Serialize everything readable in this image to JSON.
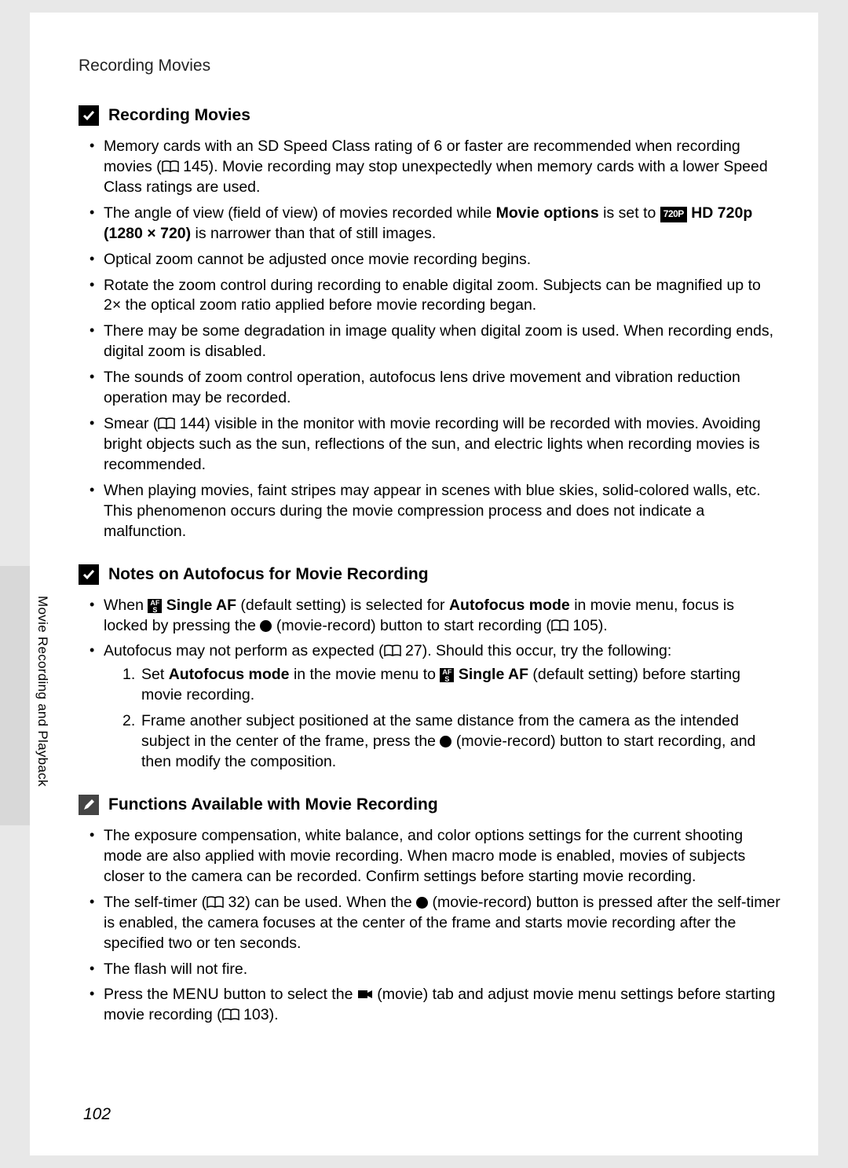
{
  "header": {
    "title": "Recording Movies"
  },
  "sideText": "Movie Recording and Playback",
  "pageNumber": "102",
  "sections": [
    {
      "icon": "check",
      "title": "Recording Movies",
      "bullets": [
        "Memory cards with an SD Speed Class rating of 6 or faster are recommended when recording movies ([BOOK] 145). Movie recording may stop unexpectedly when memory cards with a lower Speed Class ratings are used.",
        "The angle of view (field of view) of movies recorded while [B]Movie options[/B] is set to [720P] [B]HD 720p (1280 × 720)[/B] is narrower than that of still images.",
        "Optical zoom cannot be adjusted once movie recording begins.",
        "Rotate the zoom control during recording to enable digital zoom. Subjects can be magnified up to 2× the optical zoom ratio applied before movie recording began.",
        "There may be some degradation in image quality when digital zoom is used. When recording ends, digital zoom is disabled.",
        "The sounds of zoom control operation, autofocus lens drive movement and vibration reduction operation may be recorded.",
        "Smear ([BOOK] 144) visible in the monitor with movie recording will be recorded with movies. Avoiding bright objects such as the sun, reflections of the sun, and electric lights when recording movies is recommended.",
        "When playing movies, faint stripes may appear in scenes with blue skies, solid-colored walls, etc. This phenomenon occurs during the movie compression process and does not indicate a malfunction."
      ]
    },
    {
      "icon": "check",
      "title": "Notes on Autofocus for Movie Recording",
      "bullets": [
        "When [AFS] [B]Single AF[/B] (default setting) is selected for [B]Autofocus mode[/B] in movie menu, focus is locked by pressing the [DOT] (movie-record) button to start recording ([BOOK] 105).",
        "Autofocus may not perform as expected ([BOOK] 27). Should this occur, try the following:"
      ],
      "numbered": [
        "Set [B]Autofocus mode[/B] in the movie menu to [AFS] [B]Single AF[/B] (default setting) before starting movie recording.",
        "Frame another subject positioned at the same distance from the camera as the intended subject in the center of the frame, press the [DOT] (movie-record) button to start recording, and then modify the composition."
      ]
    },
    {
      "icon": "pencil",
      "title": "Functions Available with Movie Recording",
      "bullets": [
        "The exposure compensation, white balance, and color options settings for the current shooting mode are also applied with movie recording. When macro mode is enabled, movies of subjects closer to the camera can be recorded. Confirm settings before starting movie recording.",
        "The self-timer ([BOOK] 32) can be used. When the [DOT] (movie-record) button is pressed after the self-timer is enabled, the camera focuses at the center of the frame and starts movie recording after the specified two or ten seconds.",
        "The flash will not fire.",
        "Press the [MENU] button to select the [CAM] (movie) tab and adjust movie menu settings before starting movie recording ([BOOK] 103)."
      ]
    }
  ]
}
